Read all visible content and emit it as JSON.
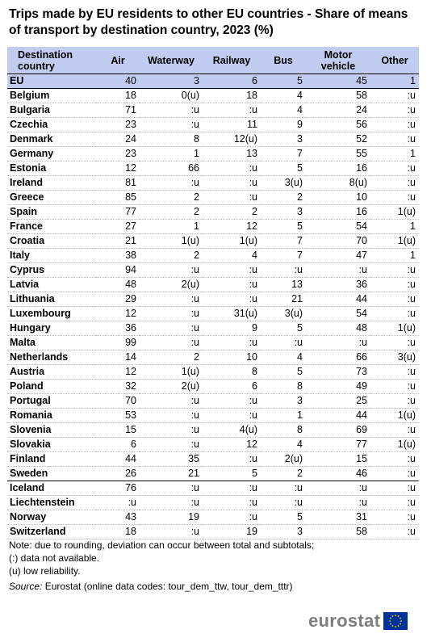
{
  "title": "Trips made by EU residents to other EU countries - Share of means of transport by destination country, 2023 (%)",
  "columns": [
    "Destination country",
    "Air",
    "Waterway",
    "Railway",
    "Bus",
    "Motor vehicle",
    "Other"
  ],
  "rows": [
    {
      "country": "EU",
      "air": "40",
      "waterway": "3",
      "railway": "6",
      "bus": "5",
      "motor": "45",
      "other": "1"
    },
    {
      "country": "Belgium",
      "air": "18",
      "waterway": "0(u)",
      "railway": "18",
      "bus": "4",
      "motor": "58",
      "other": ":u"
    },
    {
      "country": "Bulgaria",
      "air": "71",
      "waterway": ":u",
      "railway": ":u",
      "bus": "4",
      "motor": "24",
      "other": ":u"
    },
    {
      "country": "Czechia",
      "air": "23",
      "waterway": ":u",
      "railway": "11",
      "bus": "9",
      "motor": "56",
      "other": ":u"
    },
    {
      "country": "Denmark",
      "air": "24",
      "waterway": "8",
      "railway": "12(u)",
      "bus": "3",
      "motor": "52",
      "other": ":u"
    },
    {
      "country": "Germany",
      "air": "23",
      "waterway": "1",
      "railway": "13",
      "bus": "7",
      "motor": "55",
      "other": "1"
    },
    {
      "country": "Estonia",
      "air": "12",
      "waterway": "66",
      "railway": ":u",
      "bus": "5",
      "motor": "16",
      "other": ":u"
    },
    {
      "country": "Ireland",
      "air": "81",
      "waterway": ":u",
      "railway": ":u",
      "bus": "3(u)",
      "motor": "8(u)",
      "other": ":u"
    },
    {
      "country": "Greece",
      "air": "85",
      "waterway": "2",
      "railway": ":u",
      "bus": "2",
      "motor": "10",
      "other": ":u"
    },
    {
      "country": "Spain",
      "air": "77",
      "waterway": "2",
      "railway": "2",
      "bus": "3",
      "motor": "16",
      "other": "1(u)"
    },
    {
      "country": "France",
      "air": "27",
      "waterway": "1",
      "railway": "12",
      "bus": "5",
      "motor": "54",
      "other": "1"
    },
    {
      "country": "Croatia",
      "air": "21",
      "waterway": "1(u)",
      "railway": "1(u)",
      "bus": "7",
      "motor": "70",
      "other": "1(u)"
    },
    {
      "country": "Italy",
      "air": "38",
      "waterway": "2",
      "railway": "4",
      "bus": "7",
      "motor": "47",
      "other": "1"
    },
    {
      "country": "Cyprus",
      "air": "94",
      "waterway": ":u",
      "railway": ":u",
      "bus": ":u",
      "motor": ":u",
      "other": ":u"
    },
    {
      "country": "Latvia",
      "air": "48",
      "waterway": "2(u)",
      "railway": ":u",
      "bus": "13",
      "motor": "36",
      "other": ":u"
    },
    {
      "country": "Lithuania",
      "air": "29",
      "waterway": ":u",
      "railway": ":u",
      "bus": "21",
      "motor": "44",
      "other": ":u"
    },
    {
      "country": "Luxembourg",
      "air": "12",
      "waterway": ":u",
      "railway": "31(u)",
      "bus": "3(u)",
      "motor": "54",
      "other": ":u"
    },
    {
      "country": "Hungary",
      "air": "36",
      "waterway": ":u",
      "railway": "9",
      "bus": "5",
      "motor": "48",
      "other": "1(u)"
    },
    {
      "country": "Malta",
      "air": "99",
      "waterway": ":u",
      "railway": ":u",
      "bus": ":u",
      "motor": ":u",
      "other": ":u"
    },
    {
      "country": "Netherlands",
      "air": "14",
      "waterway": "2",
      "railway": "10",
      "bus": "4",
      "motor": "66",
      "other": "3(u)"
    },
    {
      "country": "Austria",
      "air": "12",
      "waterway": "1(u)",
      "railway": "8",
      "bus": "5",
      "motor": "73",
      "other": ":u"
    },
    {
      "country": "Poland",
      "air": "32",
      "waterway": "2(u)",
      "railway": "6",
      "bus": "8",
      "motor": "49",
      "other": ":u"
    },
    {
      "country": "Portugal",
      "air": "70",
      "waterway": ":u",
      "railway": ":u",
      "bus": "3",
      "motor": "25",
      "other": ":u"
    },
    {
      "country": "Romania",
      "air": "53",
      "waterway": ":u",
      "railway": ":u",
      "bus": "1",
      "motor": "44",
      "other": "1(u)"
    },
    {
      "country": "Slovenia",
      "air": "15",
      "waterway": ":u",
      "railway": "4(u)",
      "bus": "8",
      "motor": "69",
      "other": ":u"
    },
    {
      "country": "Slovakia",
      "air": "6",
      "waterway": ":u",
      "railway": "12",
      "bus": "4",
      "motor": "77",
      "other": "1(u)"
    },
    {
      "country": "Finland",
      "air": "44",
      "waterway": "35",
      "railway": ":u",
      "bus": "2(u)",
      "motor": "15",
      "other": ":u"
    },
    {
      "country": "Sweden",
      "air": "26",
      "waterway": "21",
      "railway": "5",
      "bus": "2",
      "motor": "46",
      "other": ":u"
    },
    {
      "country": "Iceland",
      "air": "76",
      "waterway": ":u",
      "railway": ":u",
      "bus": ":u",
      "motor": ":u",
      "other": ":u"
    },
    {
      "country": "Liechtenstein",
      "air": ":u",
      "waterway": ":u",
      "railway": ":u",
      "bus": ":u",
      "motor": ":u",
      "other": ":u"
    },
    {
      "country": "Norway",
      "air": "43",
      "waterway": "19",
      "railway": ":u",
      "bus": "5",
      "motor": "31",
      "other": ":u"
    },
    {
      "country": "Switzerland",
      "air": "18",
      "waterway": ":u",
      "railway": "19",
      "bus": "3",
      "motor": "58",
      "other": ":u"
    }
  ],
  "notes": [
    "Note: due to rounding, deviation can occur between total and subtotals;",
    "(:) data not available.",
    "(u) low reliability."
  ],
  "source_label": "Source:",
  "source_text": " Eurostat (online data codes: tour_dem_ttw, tour_dem_tttr)",
  "logo_text": "eurostat",
  "colors": {
    "header_bg": "#c0cdf0",
    "logo_text": "#7d7d7d",
    "eu_flag_blue": "#003399",
    "eu_flag_stars": "#ffcc00"
  }
}
